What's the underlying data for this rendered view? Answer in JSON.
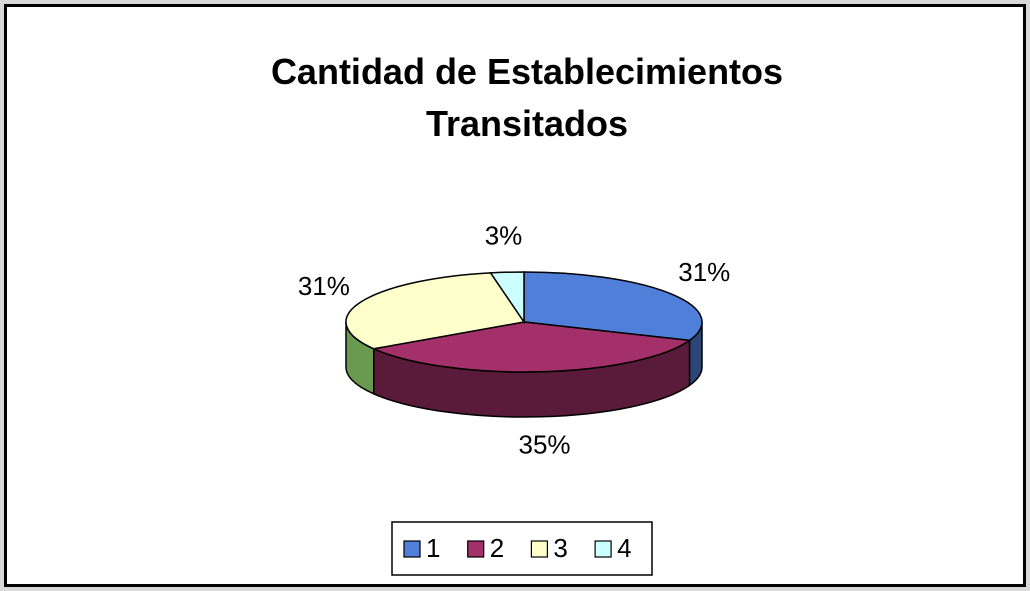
{
  "chart_data": {
    "type": "pie",
    "title": "Cantidad de Establecimientos Transitados",
    "categories": [
      "1",
      "2",
      "3",
      "4"
    ],
    "values": [
      31,
      35,
      31,
      3
    ],
    "value_labels": [
      "31%",
      "35%",
      "31%",
      "3%"
    ],
    "colors": [
      "#4f7fd8",
      "#a33068",
      "#ffffcc",
      "#ccffff"
    ],
    "legend": "bottom"
  }
}
